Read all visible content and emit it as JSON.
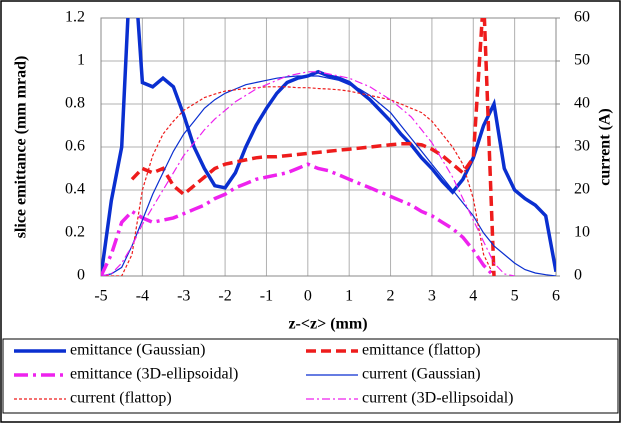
{
  "chart_data": {
    "type": "line",
    "xlabel": "z-<z> (mm)",
    "ylabel": "slice emittance (mm mrad)",
    "y2label": "current (A)",
    "x": [
      -5,
      -4.75,
      -4.5,
      -4.25,
      -4,
      -3.75,
      -3.5,
      -3.25,
      -3,
      -2.75,
      -2.5,
      -2.25,
      -2,
      -1.75,
      -1.5,
      -1.25,
      -1,
      -0.75,
      -0.5,
      -0.25,
      0,
      0.25,
      0.5,
      0.75,
      1,
      1.25,
      1.5,
      1.75,
      2,
      2.25,
      2.5,
      2.75,
      3,
      3.25,
      3.5,
      3.75,
      4,
      4.25,
      4.5,
      4.75,
      5,
      5.25,
      5.5,
      5.75,
      6
    ],
    "xlim": [
      -5,
      6
    ],
    "xticks": [
      -5,
      -4,
      -3,
      -2,
      -1,
      0,
      1,
      2,
      3,
      4,
      5,
      6
    ],
    "ylim": [
      0,
      1.2
    ],
    "yticks": [
      0,
      0.2,
      0.4,
      0.6,
      0.8,
      1,
      1.2
    ],
    "y2lim": [
      0,
      60
    ],
    "y2ticks": [
      0,
      10,
      20,
      30,
      40,
      50,
      60
    ],
    "grid": true,
    "legend": "bottom",
    "series": [
      {
        "name": "emittance (Gaussian)",
        "color": "#0a2fd0",
        "line_width": "thick",
        "line_style": "solid",
        "values": [
          0,
          0.35,
          0.6,
          1.6,
          0.9,
          0.88,
          0.92,
          0.88,
          0.75,
          0.6,
          0.5,
          0.42,
          0.41,
          0.48,
          0.6,
          0.7,
          0.78,
          0.85,
          0.9,
          0.92,
          0.93,
          0.95,
          0.93,
          0.92,
          0.9,
          0.86,
          0.82,
          0.77,
          0.72,
          0.66,
          0.61,
          0.55,
          0.5,
          0.44,
          0.39,
          0.45,
          0.55,
          0.7,
          0.8,
          0.5,
          0.4,
          0.36,
          0.33,
          0.28,
          0.02
        ]
      },
      {
        "name": "emittance (flattop)",
        "color": "#ee1c1c",
        "line_width": "thick",
        "line_style": "dashed",
        "values": [
          null,
          null,
          null,
          0.45,
          0.5,
          0.48,
          0.5,
          0.42,
          0.38,
          0.42,
          0.46,
          0.5,
          0.52,
          0.53,
          0.54,
          0.55,
          0.555,
          0.555,
          0.56,
          0.565,
          0.57,
          0.575,
          0.58,
          0.585,
          0.59,
          0.595,
          0.6,
          0.605,
          0.61,
          0.615,
          0.615,
          0.61,
          0.59,
          0.56,
          0.52,
          0.48,
          0.55,
          1.3,
          0,
          null,
          null,
          null,
          null,
          null,
          null
        ]
      },
      {
        "name": "emittance (3D-ellipsoidal)",
        "color": "#ee22ee",
        "line_width": "thick",
        "line_style": "dashdot",
        "values": [
          0,
          0.1,
          0.25,
          0.3,
          0.27,
          0.25,
          0.26,
          0.27,
          0.29,
          0.31,
          0.33,
          0.36,
          0.38,
          0.41,
          0.43,
          0.45,
          0.46,
          0.47,
          0.48,
          0.5,
          0.52,
          0.5,
          0.49,
          0.47,
          0.45,
          0.43,
          0.41,
          0.39,
          0.37,
          0.35,
          0.33,
          0.3,
          0.28,
          0.25,
          0.22,
          0.18,
          0.12,
          0.05,
          0,
          null,
          null,
          null,
          null,
          null,
          null
        ]
      },
      {
        "name": "current (Gaussian)",
        "color": "#0a2fd0",
        "line_width": "thin",
        "line_style": "solid",
        "axis": "y2",
        "values": [
          0,
          0.5,
          2,
          7,
          13,
          19,
          24,
          29,
          33,
          36,
          39,
          41,
          42.5,
          43.5,
          44.5,
          45,
          45.5,
          46,
          46.3,
          46.5,
          46.5,
          46.5,
          46,
          45.5,
          44.5,
          43.5,
          42,
          40,
          38,
          35,
          32,
          29,
          26,
          23,
          20,
          17,
          14,
          10,
          7,
          5,
          3,
          1.5,
          0.7,
          0.3,
          0
        ]
      },
      {
        "name": "current (flattop)",
        "color": "#ee1c1c",
        "line_width": "thin",
        "line_style": "dotted",
        "axis": "y2",
        "values": [
          0,
          0,
          0,
          5,
          20,
          28,
          33,
          36,
          38.5,
          40,
          41.5,
          42.3,
          43,
          43.3,
          43.6,
          43.8,
          44,
          44,
          44,
          43.8,
          43.8,
          43.6,
          43.5,
          43.3,
          43,
          42.5,
          42,
          41.5,
          41,
          40,
          39,
          38,
          36,
          33,
          30,
          26,
          18,
          5,
          0,
          null,
          null,
          null,
          null,
          null,
          null
        ]
      },
      {
        "name": "current (3D-ellipsoidal)",
        "color": "#ee22ee",
        "line_width": "thin",
        "line_style": "dashdot",
        "axis": "y2",
        "values": [
          0,
          0.5,
          3,
          7,
          12,
          16,
          20,
          24,
          28,
          31,
          34,
          36.5,
          38.5,
          40.5,
          42,
          43.5,
          44.5,
          45.5,
          46.5,
          47,
          47.5,
          47.5,
          47,
          46.5,
          46,
          45,
          44,
          42.5,
          41,
          39,
          37,
          34,
          31,
          27,
          23,
          18,
          13,
          8,
          3,
          0.5,
          0,
          null,
          null,
          null,
          null
        ]
      }
    ]
  }
}
